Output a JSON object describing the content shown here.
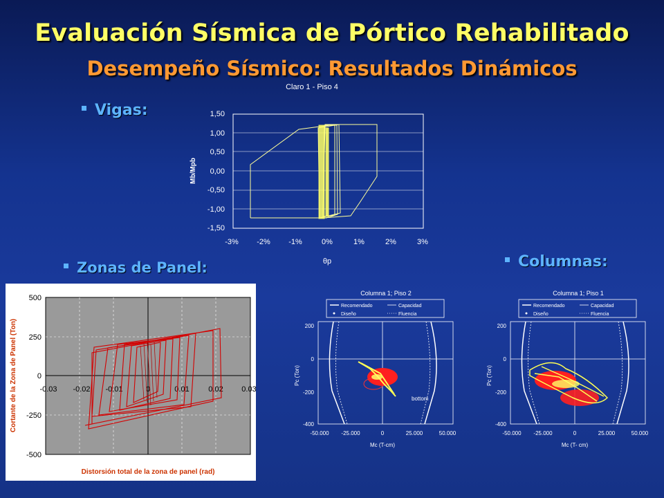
{
  "slide": {
    "title": "Evaluación Sísmica de Pórtico Rehabilitado",
    "subtitle": "Desempeño Sísmico: Resultados Dinámicos",
    "bullets": {
      "vigas": "Vigas:",
      "zonas": "Zonas de Panel:",
      "columnas": "Columnas:"
    },
    "colors": {
      "title": "#ffff66",
      "subtitle": "#ff9933",
      "bullet": "#5db4ff"
    }
  },
  "beam_chart": {
    "title": "Claro 1 - Piso 4",
    "ylabel": "Mb/Mpb",
    "xlabel": "θp",
    "yticks": [
      "1,50",
      "1,00",
      "0,50",
      "0,00",
      "-0,50",
      "-1,00",
      "-1,50"
    ],
    "xticks": [
      "-3%",
      "-2%",
      "-1%",
      "0%",
      "1%",
      "2%",
      "3%"
    ]
  },
  "panel_chart": {
    "ylabel": "Cortante de la Zona de Panel (Ton)",
    "xlabel": "Distorsión total de la zona de panel (rad)",
    "yticks": [
      "500",
      "250",
      "0",
      "-250",
      "-500"
    ],
    "xticks": [
      "-0.03",
      "-0.02",
      "-0.01",
      "0",
      "0.01",
      "0.02",
      "0.03"
    ]
  },
  "col2_chart": {
    "title": "Columna 1; Piso 2",
    "legend": [
      "Recomendado",
      "Capacidad",
      "Diseño",
      "Fluencia"
    ],
    "ylabel": "Pc (Ton)",
    "xlabel": "Mc (T-cm)",
    "yticks": [
      "200",
      "0",
      "-200",
      "-400"
    ],
    "xticks": [
      "-50.000",
      "-25.000",
      "0",
      "25.000",
      "50.000"
    ],
    "annotation": "bottom"
  },
  "col1_chart": {
    "title": "Columna 1; Piso 1",
    "legend": [
      "Recomendado",
      "Capacidad",
      "Diseño",
      "Fluencia"
    ],
    "ylabel": "Pc (Ton)",
    "xlabel": "Mc (T- cm)",
    "yticks": [
      "200",
      "0",
      "-200",
      "-400"
    ],
    "xticks": [
      "-50.000",
      "-25.000",
      "0",
      "25.000",
      "50.000"
    ]
  }
}
